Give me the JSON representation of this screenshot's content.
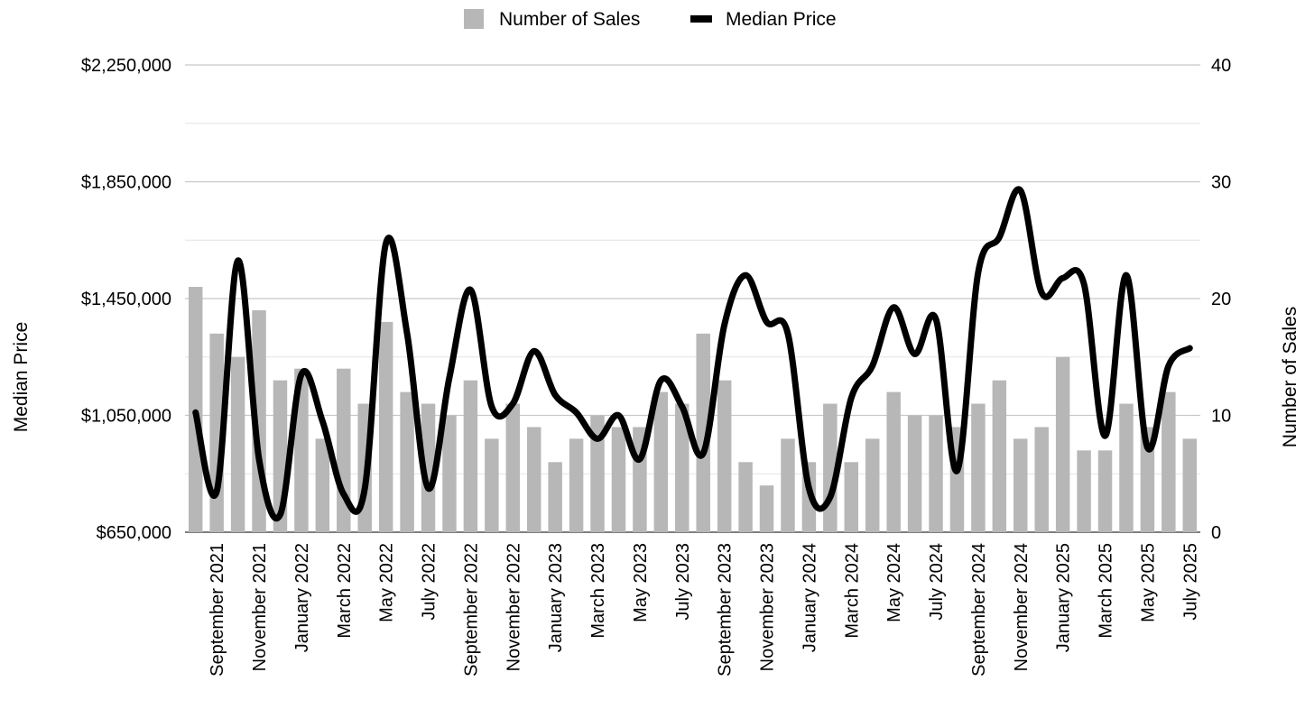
{
  "chart_data": {
    "type": "bar",
    "combo": "bar+line",
    "categories": [
      "August 2021",
      "September 2021",
      "October 2021",
      "November 2021",
      "December 2021",
      "January 2022",
      "February 2022",
      "March 2022",
      "April 2022",
      "May 2022",
      "June 2022",
      "July 2022",
      "August 2022",
      "September 2022",
      "October 2022",
      "November 2022",
      "December 2022",
      "January 2023",
      "February 2023",
      "March 2023",
      "April 2023",
      "May 2023",
      "June 2023",
      "July 2023",
      "August 2023",
      "September 2023",
      "October 2023",
      "November 2023",
      "December 2023",
      "January 2024",
      "February 2024",
      "March 2024",
      "April 2024",
      "May 2024",
      "June 2024",
      "July 2024",
      "August 2024",
      "September 2024",
      "October 2024",
      "November 2024",
      "December 2024",
      "January 2025",
      "February 2025",
      "March 2025",
      "April 2025",
      "May 2025",
      "June 2025",
      "July 2025"
    ],
    "x_tick_labels": [
      "September 2021",
      "November 2021",
      "January 2022",
      "March 2022",
      "May 2022",
      "July 2022",
      "September 2022",
      "November 2022",
      "January 2023",
      "March 2023",
      "May 2023",
      "July 2023",
      "September 2023",
      "November 2023",
      "January 2024",
      "March 2024",
      "May 2024",
      "July 2024",
      "September 2024",
      "November 2024",
      "January 2025",
      "March 2025",
      "May 2025",
      "July 2025"
    ],
    "series": [
      {
        "name": "Number of Sales",
        "type": "bar",
        "axis": "right",
        "color": "#b7b7b7",
        "values": [
          21,
          17,
          15,
          19,
          13,
          14,
          8,
          14,
          11,
          18,
          12,
          11,
          10,
          13,
          8,
          11,
          9,
          6,
          8,
          10,
          9,
          9,
          12,
          11,
          17,
          13,
          6,
          4,
          8,
          6,
          11,
          6,
          8,
          12,
          10,
          10,
          9,
          11,
          13,
          8,
          9,
          15,
          7,
          7,
          11,
          9,
          12,
          8
        ]
      },
      {
        "name": "Median Price",
        "type": "line",
        "axis": "left",
        "color": "#000000",
        "values": [
          1060000,
          790000,
          1580000,
          900000,
          710000,
          1190000,
          1030000,
          780000,
          800000,
          1640000,
          1330000,
          800000,
          1180000,
          1480000,
          1080000,
          1090000,
          1270000,
          1120000,
          1060000,
          970000,
          1050000,
          900000,
          1170000,
          1080000,
          920000,
          1360000,
          1530000,
          1370000,
          1330000,
          800000,
          770000,
          1110000,
          1220000,
          1420000,
          1260000,
          1380000,
          860000,
          1540000,
          1660000,
          1820000,
          1470000,
          1520000,
          1500000,
          980000,
          1530000,
          940000,
          1220000,
          1280000
        ]
      }
    ],
    "y_left": {
      "label": "Median Price",
      "ylim": [
        650000,
        2250000
      ],
      "ticks": [
        "$650,000",
        "$1,050,000",
        "$1,450,000",
        "$1,850,000",
        "$2,250,000"
      ]
    },
    "y_right": {
      "label": "Number of Sales",
      "ylim": [
        0,
        40
      ],
      "ticks": [
        "0",
        "10",
        "20",
        "30",
        "40"
      ]
    },
    "grid": true,
    "legend": "top-center",
    "title": ""
  }
}
